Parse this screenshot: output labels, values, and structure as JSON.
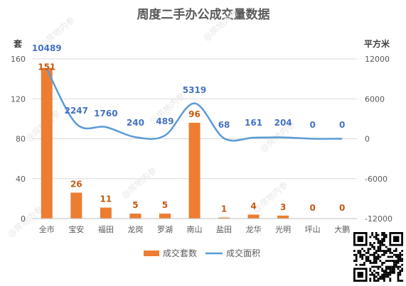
{
  "chart_data": {
    "type": "bar",
    "title": "周度二手办公成交量数据",
    "categories": [
      "全市",
      "宝安",
      "福田",
      "龙岗",
      "罗湖",
      "南山",
      "盐田",
      "龙华",
      "光明",
      "坪山",
      "大鹏"
    ],
    "left_axis": {
      "unit": "套",
      "ylim": [
        0,
        160
      ],
      "ticks": [
        0,
        40,
        80,
        120,
        160
      ]
    },
    "right_axis": {
      "unit": "平方米",
      "ylim": [
        -12000,
        12000
      ],
      "ticks": [
        -12000,
        -6000,
        0,
        6000,
        12000
      ]
    },
    "series": [
      {
        "name": "成交套数",
        "type": "bar",
        "axis": "left",
        "values": [
          151,
          26,
          11,
          5,
          5,
          96,
          1,
          4,
          3,
          0,
          0
        ]
      },
      {
        "name": "成交面积",
        "type": "line",
        "axis": "right",
        "values": [
          10489,
          2247,
          1760,
          240,
          489,
          5319,
          68,
          161,
          204,
          0,
          0
        ]
      }
    ],
    "legend_position": "bottom",
    "grid": true,
    "colors": {
      "bar": "#ED7D31",
      "line": "#5B9BD5",
      "bar_label": "#C55A11",
      "line_label": "#4472C4",
      "grid": "#D9D9D9",
      "axis_text": "#595959"
    }
  },
  "watermark": "@房地内参"
}
